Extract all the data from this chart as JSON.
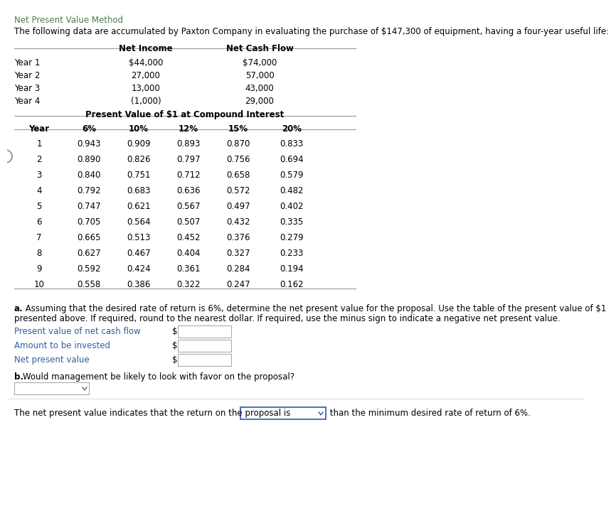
{
  "title": "Net Present Value Method",
  "intro_text": "The following data are accumulated by Paxton Company in evaluating the purchase of $147,300 of equipment, having a four-year useful life:",
  "table1_headers": [
    "Net Income",
    "Net Cash Flow"
  ],
  "table1_rows": [
    [
      "Year 1",
      "$44,000",
      "$74,000"
    ],
    [
      "Year 2",
      "27,000",
      "57,000"
    ],
    [
      "Year 3",
      "13,000",
      "43,000"
    ],
    [
      "Year 4",
      "(1,000)",
      "29,000"
    ]
  ],
  "table2_title": "Present Value of $1 at Compound Interest",
  "table2_headers": [
    "Year",
    "6%",
    "10%",
    "12%",
    "15%",
    "20%"
  ],
  "table2_rows": [
    [
      "1",
      "0.943",
      "0.909",
      "0.893",
      "0.870",
      "0.833"
    ],
    [
      "2",
      "0.890",
      "0.826",
      "0.797",
      "0.756",
      "0.694"
    ],
    [
      "3",
      "0.840",
      "0.751",
      "0.712",
      "0.658",
      "0.579"
    ],
    [
      "4",
      "0.792",
      "0.683",
      "0.636",
      "0.572",
      "0.482"
    ],
    [
      "5",
      "0.747",
      "0.621",
      "0.567",
      "0.497",
      "0.402"
    ],
    [
      "6",
      "0.705",
      "0.564",
      "0.507",
      "0.432",
      "0.335"
    ],
    [
      "7",
      "0.665",
      "0.513",
      "0.452",
      "0.376",
      "0.279"
    ],
    [
      "8",
      "0.627",
      "0.467",
      "0.404",
      "0.327",
      "0.233"
    ],
    [
      "9",
      "0.592",
      "0.424",
      "0.361",
      "0.284",
      "0.194"
    ],
    [
      "10",
      "0.558",
      "0.386",
      "0.322",
      "0.247",
      "0.162"
    ]
  ],
  "question_a_line1": "a.  Assuming that the desired rate of return is 6%, determine the net present value for the proposal. Use the table of the present value of $1",
  "question_a_line2": "presented above. If required, round to the nearest dollar. If required, use the minus sign to indicate a negative net present value.",
  "label1": "Present value of net cash flow",
  "label2": "Amount to be invested",
  "label3": "Net present value",
  "question_b": "Would management be likely to look with favor on the proposal?",
  "footer_text1": "The net present value indicates that the return on the proposal is",
  "footer_text2": " than the minimum desired rate of return of 6%.",
  "title_color": "#4a7c4e",
  "body_text_color": "#000000",
  "label_color": "#2e5fa3",
  "bg_color": "#ffffff",
  "line_color": "#999999",
  "box_border": "#aaaaaa",
  "blue_box_border": "#3355aa"
}
